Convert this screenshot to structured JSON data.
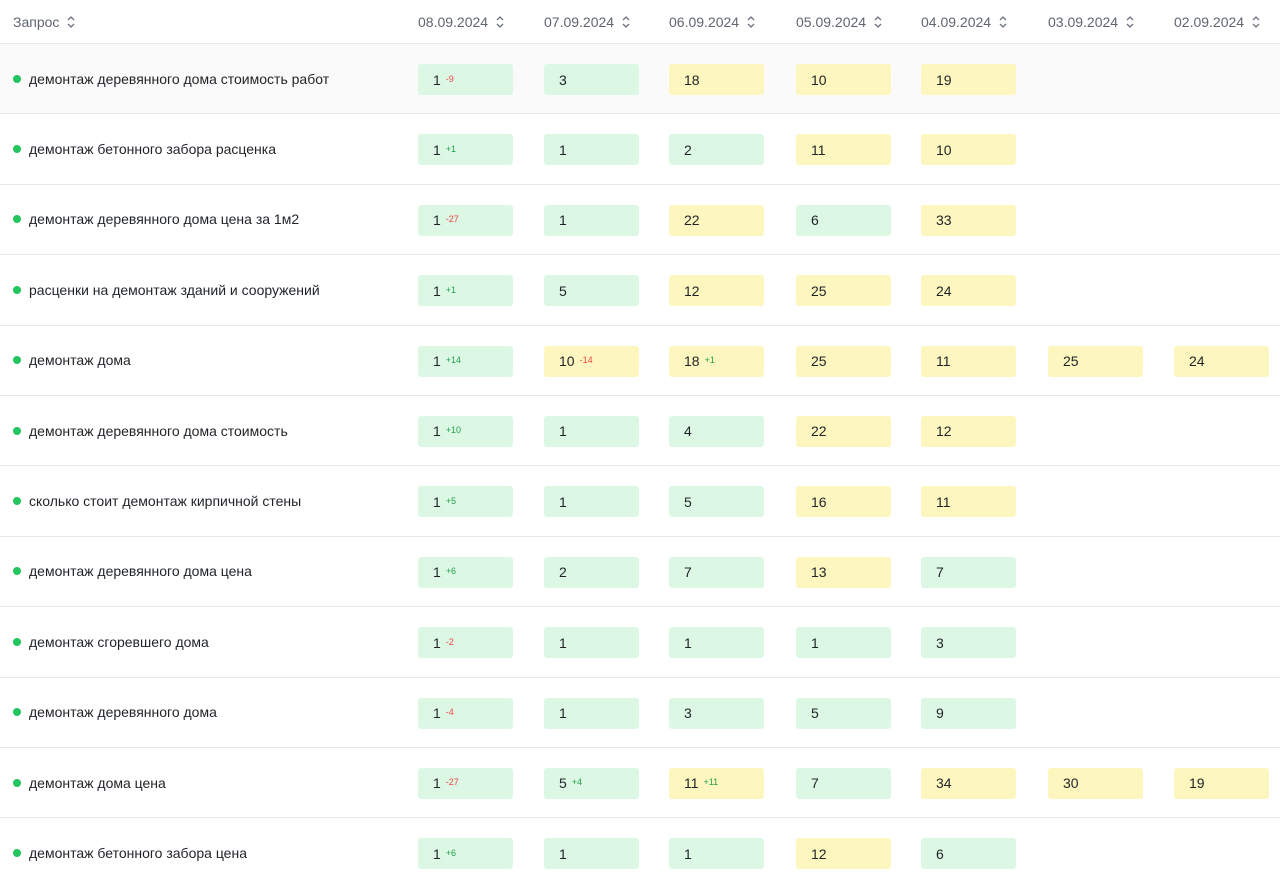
{
  "table": {
    "query_header": "Запрос",
    "dates": [
      "08.09.2024",
      "07.09.2024",
      "06.09.2024",
      "05.09.2024",
      "04.09.2024",
      "03.09.2024",
      "02.09.2024"
    ],
    "rows": [
      {
        "query": "демонтаж деревянного дома стоимость работ",
        "cells": [
          {
            "v": "1",
            "d": "-9",
            "c": "g"
          },
          {
            "v": "3",
            "d": "",
            "c": "g"
          },
          {
            "v": "18",
            "d": "",
            "c": "y"
          },
          {
            "v": "10",
            "d": "",
            "c": "y"
          },
          {
            "v": "19",
            "d": "",
            "c": "y"
          },
          {
            "v": "",
            "d": "",
            "c": ""
          },
          {
            "v": "",
            "d": "",
            "c": ""
          }
        ]
      },
      {
        "query": "демонтаж бетонного забора расценка",
        "cells": [
          {
            "v": "1",
            "d": "+1",
            "c": "g"
          },
          {
            "v": "1",
            "d": "",
            "c": "g"
          },
          {
            "v": "2",
            "d": "",
            "c": "g"
          },
          {
            "v": "11",
            "d": "",
            "c": "y"
          },
          {
            "v": "10",
            "d": "",
            "c": "y"
          },
          {
            "v": "",
            "d": "",
            "c": ""
          },
          {
            "v": "",
            "d": "",
            "c": ""
          }
        ]
      },
      {
        "query": "демонтаж деревянного дома цена за 1м2",
        "cells": [
          {
            "v": "1",
            "d": "-27",
            "c": "g"
          },
          {
            "v": "1",
            "d": "",
            "c": "g"
          },
          {
            "v": "22",
            "d": "",
            "c": "y"
          },
          {
            "v": "6",
            "d": "",
            "c": "g"
          },
          {
            "v": "33",
            "d": "",
            "c": "y"
          },
          {
            "v": "",
            "d": "",
            "c": ""
          },
          {
            "v": "",
            "d": "",
            "c": ""
          }
        ]
      },
      {
        "query": "расценки на демонтаж зданий и сооружений",
        "cells": [
          {
            "v": "1",
            "d": "+1",
            "c": "g"
          },
          {
            "v": "5",
            "d": "",
            "c": "g"
          },
          {
            "v": "12",
            "d": "",
            "c": "y"
          },
          {
            "v": "25",
            "d": "",
            "c": "y"
          },
          {
            "v": "24",
            "d": "",
            "c": "y"
          },
          {
            "v": "",
            "d": "",
            "c": ""
          },
          {
            "v": "",
            "d": "",
            "c": ""
          }
        ]
      },
      {
        "query": "демонтаж дома",
        "cells": [
          {
            "v": "1",
            "d": "+14",
            "c": "g"
          },
          {
            "v": "10",
            "d": "-14",
            "c": "y"
          },
          {
            "v": "18",
            "d": "+1",
            "c": "y"
          },
          {
            "v": "25",
            "d": "",
            "c": "y"
          },
          {
            "v": "11",
            "d": "",
            "c": "y"
          },
          {
            "v": "25",
            "d": "",
            "c": "y"
          },
          {
            "v": "24",
            "d": "",
            "c": "y"
          }
        ]
      },
      {
        "query": "демонтаж деревянного дома стоимость",
        "cells": [
          {
            "v": "1",
            "d": "+10",
            "c": "g"
          },
          {
            "v": "1",
            "d": "",
            "c": "g"
          },
          {
            "v": "4",
            "d": "",
            "c": "g"
          },
          {
            "v": "22",
            "d": "",
            "c": "y"
          },
          {
            "v": "12",
            "d": "",
            "c": "y"
          },
          {
            "v": "",
            "d": "",
            "c": ""
          },
          {
            "v": "",
            "d": "",
            "c": ""
          }
        ]
      },
      {
        "query": "сколько стоит демонтаж кирпичной стены",
        "cells": [
          {
            "v": "1",
            "d": "+5",
            "c": "g"
          },
          {
            "v": "1",
            "d": "",
            "c": "g"
          },
          {
            "v": "5",
            "d": "",
            "c": "g"
          },
          {
            "v": "16",
            "d": "",
            "c": "y"
          },
          {
            "v": "11",
            "d": "",
            "c": "y"
          },
          {
            "v": "",
            "d": "",
            "c": ""
          },
          {
            "v": "",
            "d": "",
            "c": ""
          }
        ]
      },
      {
        "query": "демонтаж деревянного дома цена",
        "cells": [
          {
            "v": "1",
            "d": "+6",
            "c": "g"
          },
          {
            "v": "2",
            "d": "",
            "c": "g"
          },
          {
            "v": "7",
            "d": "",
            "c": "g"
          },
          {
            "v": "13",
            "d": "",
            "c": "y"
          },
          {
            "v": "7",
            "d": "",
            "c": "g"
          },
          {
            "v": "",
            "d": "",
            "c": ""
          },
          {
            "v": "",
            "d": "",
            "c": ""
          }
        ]
      },
      {
        "query": "демонтаж сгоревшего дома",
        "cells": [
          {
            "v": "1",
            "d": "-2",
            "c": "g"
          },
          {
            "v": "1",
            "d": "",
            "c": "g"
          },
          {
            "v": "1",
            "d": "",
            "c": "g"
          },
          {
            "v": "1",
            "d": "",
            "c": "g"
          },
          {
            "v": "3",
            "d": "",
            "c": "g"
          },
          {
            "v": "",
            "d": "",
            "c": ""
          },
          {
            "v": "",
            "d": "",
            "c": ""
          }
        ]
      },
      {
        "query": "демонтаж деревянного дома",
        "cells": [
          {
            "v": "1",
            "d": "-4",
            "c": "g"
          },
          {
            "v": "1",
            "d": "",
            "c": "g"
          },
          {
            "v": "3",
            "d": "",
            "c": "g"
          },
          {
            "v": "5",
            "d": "",
            "c": "g"
          },
          {
            "v": "9",
            "d": "",
            "c": "g"
          },
          {
            "v": "",
            "d": "",
            "c": ""
          },
          {
            "v": "",
            "d": "",
            "c": ""
          }
        ]
      },
      {
        "query": "демонтаж дома цена",
        "cells": [
          {
            "v": "1",
            "d": "-27",
            "c": "g"
          },
          {
            "v": "5",
            "d": "+4",
            "c": "g"
          },
          {
            "v": "11",
            "d": "+11",
            "c": "y"
          },
          {
            "v": "7",
            "d": "",
            "c": "g"
          },
          {
            "v": "34",
            "d": "",
            "c": "y"
          },
          {
            "v": "30",
            "d": "",
            "c": "y"
          },
          {
            "v": "19",
            "d": "",
            "c": "y"
          }
        ]
      },
      {
        "query": "демонтаж бетонного забора цена",
        "cells": [
          {
            "v": "1",
            "d": "+6",
            "c": "g"
          },
          {
            "v": "1",
            "d": "",
            "c": "g"
          },
          {
            "v": "1",
            "d": "",
            "c": "g"
          },
          {
            "v": "12",
            "d": "",
            "c": "y"
          },
          {
            "v": "6",
            "d": "",
            "c": "g"
          },
          {
            "v": "",
            "d": "",
            "c": ""
          },
          {
            "v": "",
            "d": "",
            "c": ""
          }
        ]
      }
    ]
  },
  "colors": {
    "good": "#dcf8e5",
    "medium": "#fdf6bf",
    "status_dot": "#22c55e",
    "delta_up": "#22a04b",
    "delta_down": "#ef4444"
  },
  "icons": {
    "sort": "sort-arrows-icon",
    "status": "status-dot-icon"
  }
}
